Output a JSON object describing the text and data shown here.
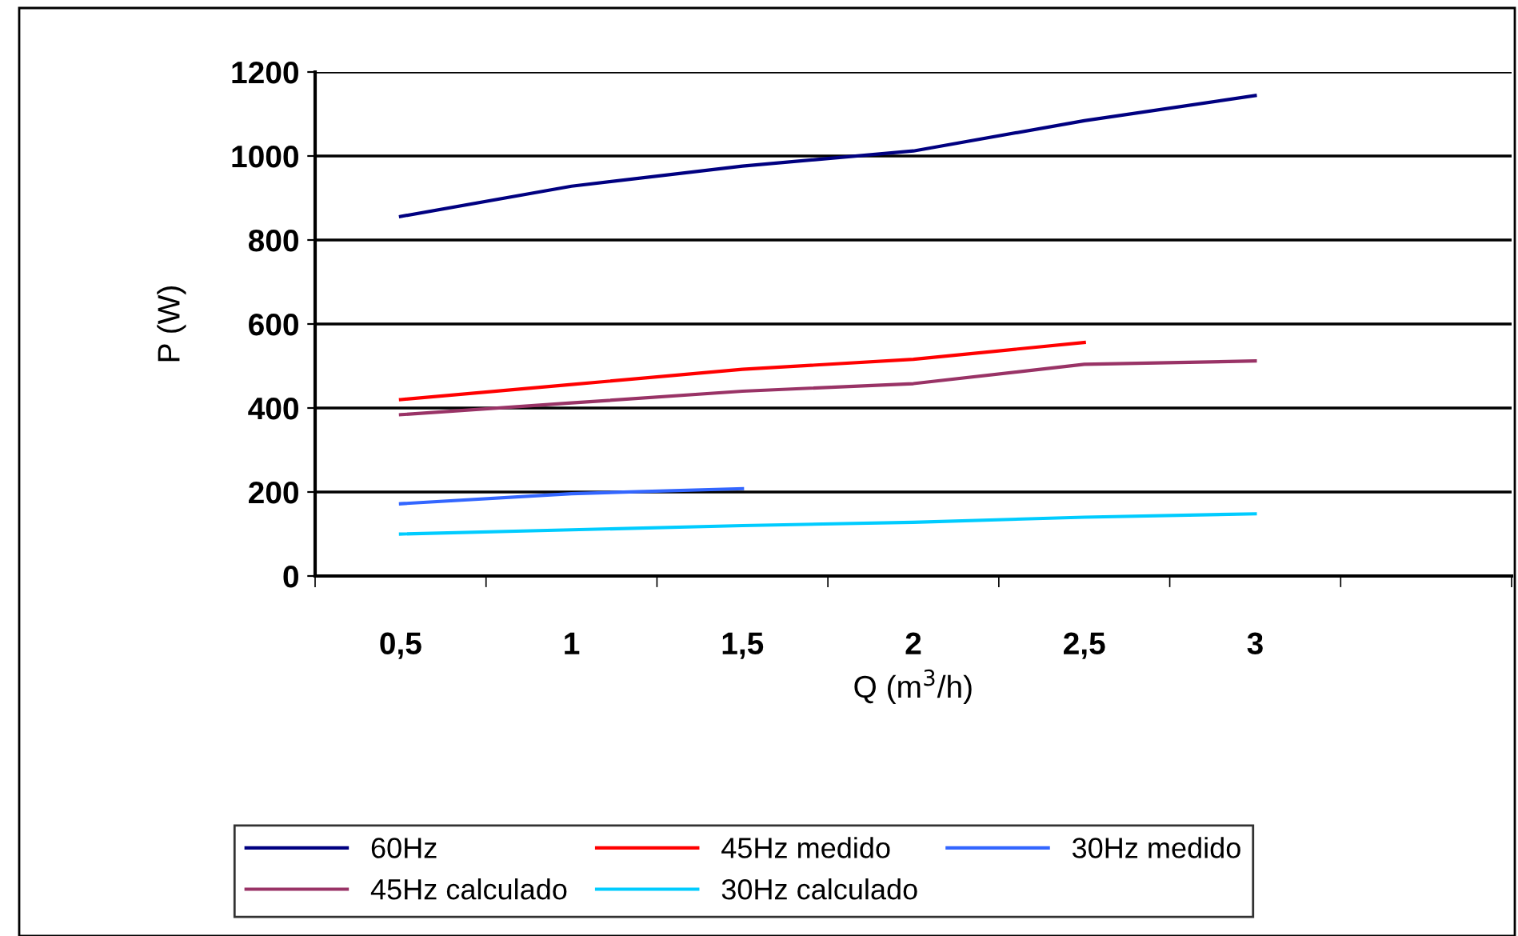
{
  "chart_data": {
    "type": "line",
    "xlabel": "Q (m$^{3}$/h)",
    "ylabel": "P (W)",
    "categories": [
      "0,5",
      "1",
      "1,5",
      "2",
      "2,5",
      "3",
      null
    ],
    "series": [
      {
        "name": "60Hz",
        "color": "#000080",
        "values": [
          856,
          928,
          976,
          1012,
          1084,
          1144,
          null
        ]
      },
      {
        "name": "45Hz calculado",
        "color": "#993366",
        "values": [
          384,
          412,
          440,
          458,
          504,
          512,
          null
        ]
      },
      {
        "name": "45Hz medido",
        "color": "#ff0000",
        "values": [
          420,
          456,
          492,
          516,
          556,
          null,
          null
        ]
      },
      {
        "name": "30Hz calculado",
        "color": "#00ccff",
        "values": [
          100,
          110,
          120,
          128,
          140,
          148,
          null
        ]
      },
      {
        "name": "30Hz medido",
        "color": "#3366ff",
        "values": [
          172,
          196,
          208,
          null,
          null,
          null,
          null
        ]
      }
    ],
    "ylim": [
      0,
      1200
    ],
    "yticks": [
      0,
      200,
      400,
      600,
      800,
      1000,
      1200
    ],
    "grid": "y",
    "legend": "bottom",
    "marker": "none",
    "line_style": "solid"
  }
}
